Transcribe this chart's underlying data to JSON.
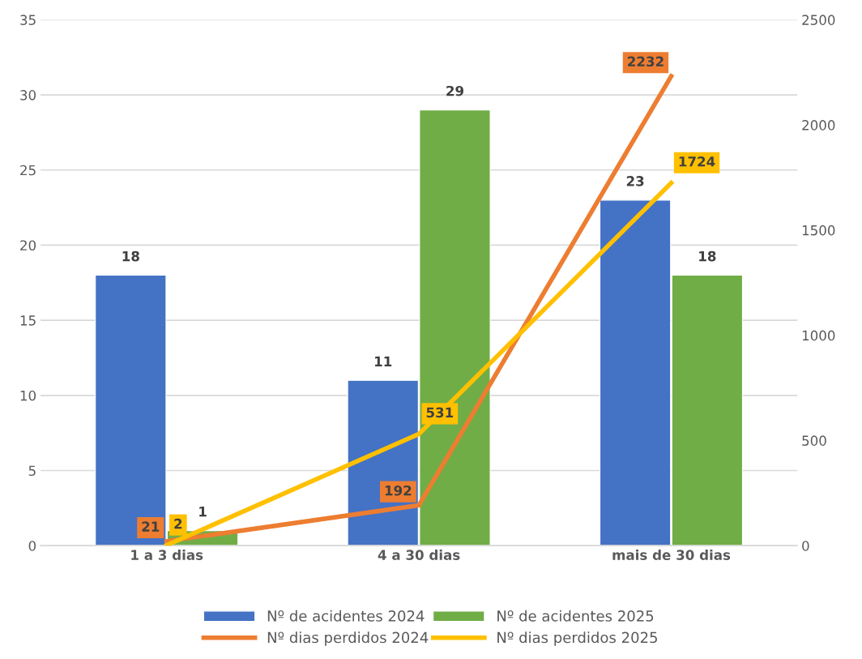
{
  "chart_data": {
    "type": "bar",
    "categories": [
      "1 a 3 dias",
      "4 a 30 dias",
      "mais de 30 dias"
    ],
    "series": [
      {
        "name": "Nº de acidentes 2024",
        "color": "#4472c4",
        "values": [
          18,
          11,
          23
        ]
      },
      {
        "name": "Nº de acidentes 2025",
        "color": "#70ad47",
        "values": [
          1,
          29,
          18
        ]
      },
      {
        "name": "Nº dias perdidos 2024",
        "color": "#ed7d31",
        "type": "line",
        "axis": "y2",
        "values": [
          21,
          192,
          2232
        ]
      },
      {
        "name": "Nº dias perdidos 2025",
        "color": "#ffc000",
        "type": "line",
        "axis": "y2",
        "values": [
          2,
          531,
          1724
        ]
      }
    ],
    "ylim": [
      0,
      35
    ],
    "yticks": [
      0,
      5,
      10,
      15,
      20,
      25,
      30,
      35
    ],
    "y2lim": [
      0,
      2500
    ],
    "y2ticks": [
      0,
      500,
      1000,
      1500,
      2000,
      2500
    ],
    "grid": "y",
    "legend": "bottom",
    "data_labels": true,
    "marker": "none",
    "line_style": "solid"
  }
}
